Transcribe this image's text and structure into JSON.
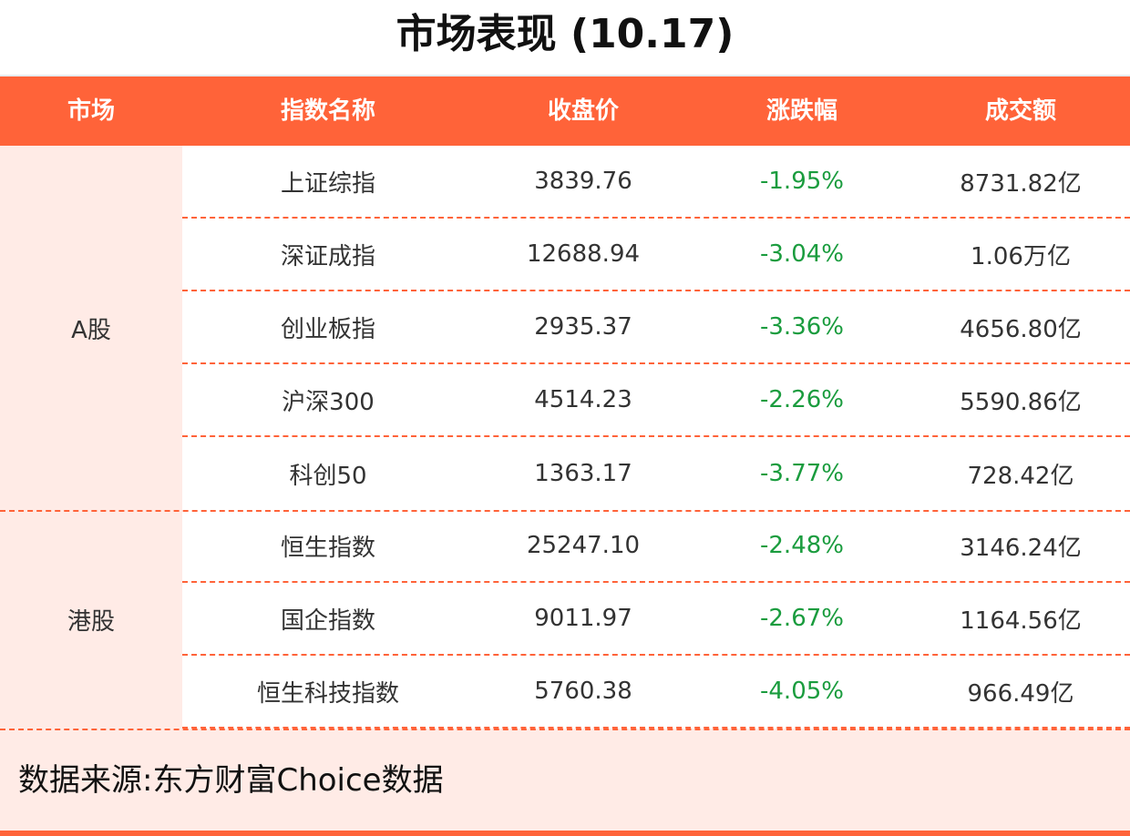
{
  "title": "市场表现 (10.17)",
  "columns": [
    "市场",
    "指数名称",
    "收盘价",
    "涨跌幅",
    "成交额"
  ],
  "colors": {
    "accent": "#FF6339",
    "market_bg": "#FFEBE6",
    "negative": "#1a9c3e"
  },
  "groups": [
    {
      "market": "A股",
      "rows": [
        {
          "name": "上证综指",
          "close": "3839.76",
          "change": "-1.95%",
          "volume": "8731.82亿"
        },
        {
          "name": "深证成指",
          "close": "12688.94",
          "change": "-3.04%",
          "volume": "1.06万亿"
        },
        {
          "name": "创业板指",
          "close": "2935.37",
          "change": "-3.36%",
          "volume": "4656.80亿"
        },
        {
          "name": "沪深300",
          "close": "4514.23",
          "change": "-2.26%",
          "volume": "5590.86亿"
        },
        {
          "name": "科创50",
          "close": "1363.17",
          "change": "-3.77%",
          "volume": "728.42亿"
        }
      ]
    },
    {
      "market": "港股",
      "rows": [
        {
          "name": "恒生指数",
          "close": "25247.10",
          "change": "-2.48%",
          "volume": "3146.24亿"
        },
        {
          "name": "国企指数",
          "close": "9011.97",
          "change": "-2.67%",
          "volume": "1164.56亿"
        },
        {
          "name": "恒生科技指数",
          "close": "5760.38",
          "change": "-4.05%",
          "volume": "966.49亿"
        }
      ]
    }
  ],
  "footer": "数据来源:东方财富Choice数据"
}
